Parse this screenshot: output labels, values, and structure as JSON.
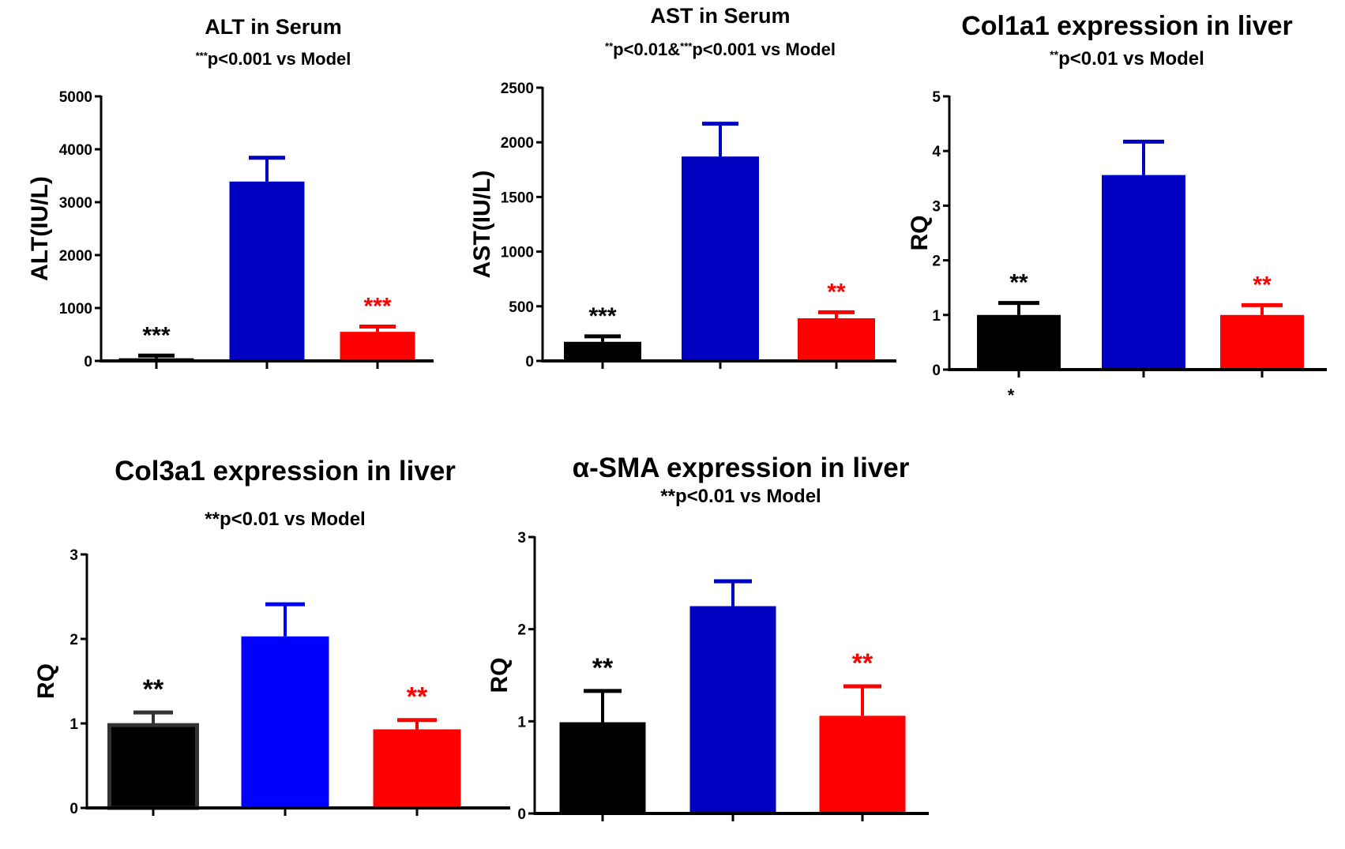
{
  "figure": {
    "colors": {
      "black": "#000000",
      "dark_blue": "#0000C0",
      "bright_blue": "#0000FF",
      "red": "#FF0000",
      "black_edge": "#333333"
    }
  },
  "chart_data": [
    {
      "type": "bar",
      "title": "ALT in Serum",
      "subtitle_prefix": "***",
      "subtitle": "p<0.001 vs Model",
      "xlabel": "",
      "ylabel": "ALT(IU/L)",
      "ylim": [
        0,
        5000
      ],
      "yticks": [
        0,
        1000,
        2000,
        3000,
        4000,
        5000
      ],
      "ytick_labels": [
        "0",
        "1000",
        "2000",
        "3000",
        "4000",
        "5000"
      ],
      "categories": [
        "",
        "",
        ""
      ],
      "values": [
        50,
        3390,
        550
      ],
      "error_upper": [
        100,
        3840,
        650
      ],
      "bar_colors": [
        "#000000",
        "#0000C0",
        "#FF0000"
      ],
      "annotations": [
        "***",
        "",
        "***"
      ],
      "annotation_colors": [
        "#000000",
        "#000000",
        "#FF0000"
      ],
      "grid": false,
      "legend": "none"
    },
    {
      "type": "bar",
      "title": "AST in Serum",
      "subtitle_parts": [
        "**",
        "p<0.01&",
        "***",
        "p<0.001 vs Model"
      ],
      "xlabel": "",
      "ylabel": "AST(IU/L)",
      "ylim": [
        0,
        2500
      ],
      "yticks": [
        0,
        500,
        1000,
        1500,
        2000,
        2500
      ],
      "ytick_labels": [
        "0",
        "500",
        "1000",
        "1500",
        "2000",
        "2500"
      ],
      "categories": [
        "",
        "",
        ""
      ],
      "values": [
        175,
        1870,
        390
      ],
      "error_upper": [
        225,
        2170,
        445
      ],
      "bar_colors": [
        "#000000",
        "#0000C0",
        "#FF0000"
      ],
      "annotations": [
        "***",
        "",
        "**"
      ],
      "annotation_colors": [
        "#000000",
        "#000000",
        "#FF0000"
      ],
      "grid": false,
      "legend": "none"
    },
    {
      "type": "bar",
      "title": "Col1a1 expression in liver",
      "subtitle_prefix": "**",
      "subtitle": "p<0.01 vs Model",
      "xlabel": "",
      "ylabel": "RQ",
      "ylim": [
        0,
        5
      ],
      "yticks": [
        0,
        1,
        2,
        3,
        4,
        5
      ],
      "ytick_labels": [
        "0",
        "1",
        "2",
        "3",
        "4",
        "5"
      ],
      "categories": [
        "",
        "",
        ""
      ],
      "values": [
        1.0,
        3.56,
        1.0
      ],
      "error_upper": [
        1.22,
        4.17,
        1.18
      ],
      "bar_colors": [
        "#000000",
        "#0000C0",
        "#FF0000"
      ],
      "annotations": [
        "**",
        "",
        "**"
      ],
      "annotation_colors": [
        "#000000",
        "#000000",
        "#FF0000"
      ],
      "below_axis_note": "*",
      "grid": false,
      "legend": "none"
    },
    {
      "type": "bar",
      "title": "Col3a1 expression in liver",
      "subtitle": "**p<0.01 vs Model",
      "xlabel": "",
      "ylabel": "RQ",
      "ylim": [
        0,
        3
      ],
      "yticks": [
        0,
        1,
        2,
        3
      ],
      "ytick_labels": [
        "0",
        "1",
        "2",
        "3"
      ],
      "categories": [
        "",
        "",
        ""
      ],
      "values": [
        0.98,
        2.03,
        0.93
      ],
      "error_upper": [
        1.13,
        2.41,
        1.04
      ],
      "bar_colors": [
        "#000000",
        "#0000FF",
        "#FF0000"
      ],
      "annotations": [
        "**",
        "",
        "**"
      ],
      "annotation_colors": [
        "#000000",
        "#000000",
        "#FF0000"
      ],
      "grid": false,
      "legend": "none"
    },
    {
      "type": "bar",
      "title": "α-SMA expression in liver",
      "subtitle": "**p<0.01 vs Model",
      "xlabel": "",
      "ylabel": "RQ",
      "ylim": [
        0,
        3
      ],
      "yticks": [
        0,
        1,
        2,
        3
      ],
      "ytick_labels": [
        "0",
        "1",
        "2",
        "3"
      ],
      "categories": [
        "",
        "",
        ""
      ],
      "values": [
        0.99,
        2.25,
        1.06
      ],
      "error_upper": [
        1.33,
        2.52,
        1.38
      ],
      "bar_colors": [
        "#000000",
        "#0000C0",
        "#FF0000"
      ],
      "annotations": [
        "**",
        "",
        "**"
      ],
      "annotation_colors": [
        "#000000",
        "#000000",
        "#FF0000"
      ],
      "grid": false,
      "legend": "none"
    }
  ]
}
